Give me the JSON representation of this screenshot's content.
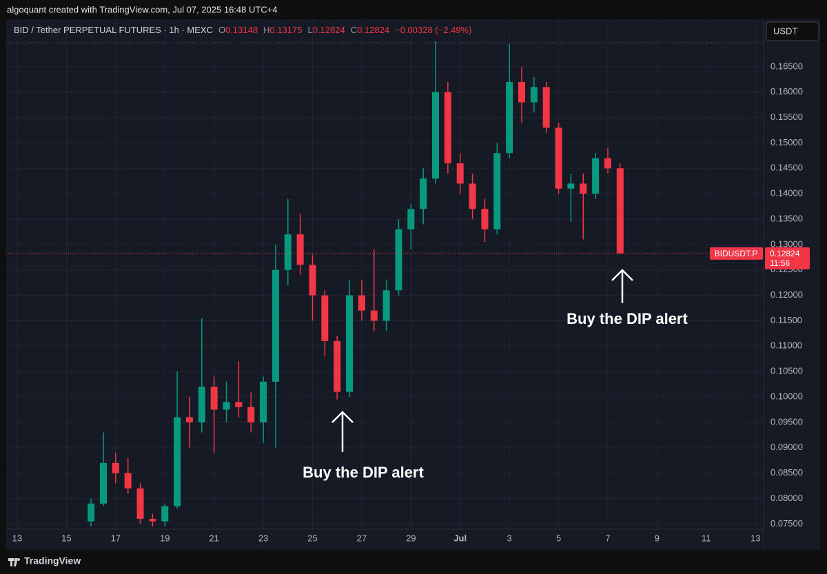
{
  "caption": "algoquant created with TradingView.com, Jul 07, 2025 16:48 UTC+4",
  "legend": {
    "symbol": "BID / Tether PERPETUAL FUTURES · 1h · MEXC",
    "open_label": "O",
    "open": 0.13148,
    "high_label": "H",
    "high": 0.13175,
    "low_label": "L",
    "low": 0.12824,
    "close_label": "C",
    "close": 0.12824,
    "change": "−0.00328 (−2.49%)"
  },
  "currency": "USDT",
  "price_tag": {
    "symbol": "BIDUSDT.P",
    "value": 0.12824,
    "countdown": "11:56"
  },
  "footer": "TradingView",
  "chart_data": {
    "type": "candlestick",
    "up_color": "#089981",
    "down_color": "#f23645",
    "grid": true,
    "x": [
      16.0,
      16.5,
      17.0,
      17.5,
      18.0,
      18.5,
      19.0,
      19.5,
      20.0,
      20.5,
      21.0,
      21.5,
      22.0,
      22.5,
      23.0,
      23.5,
      24.0,
      24.5,
      25.0,
      25.5,
      26.0,
      26.5,
      27.0,
      27.5,
      28.0,
      28.5,
      29.0,
      29.5,
      30.0,
      30.5,
      31.0,
      31.5,
      32.0,
      32.5,
      33.0,
      33.5,
      34.0,
      34.5,
      35.0,
      35.5,
      36.0,
      36.5,
      37.0,
      37.5
    ],
    "open": [
      0.0755,
      0.079,
      0.087,
      0.085,
      0.082,
      0.076,
      0.0755,
      0.0785,
      0.096,
      0.095,
      0.102,
      0.0975,
      0.099,
      0.098,
      0.095,
      0.103,
      0.125,
      0.132,
      0.126,
      0.12,
      0.111,
      0.101,
      0.12,
      0.117,
      0.115,
      0.121,
      0.133,
      0.137,
      0.143,
      0.16,
      0.146,
      0.142,
      0.137,
      0.133,
      0.148,
      0.162,
      0.158,
      0.161,
      0.153,
      0.141,
      0.142,
      0.14,
      0.147,
      0.145
    ],
    "high": [
      0.08,
      0.093,
      0.089,
      0.088,
      0.083,
      0.077,
      0.079,
      0.105,
      0.1,
      0.1155,
      0.104,
      0.103,
      0.107,
      0.101,
      0.104,
      0.13,
      0.139,
      0.136,
      0.128,
      0.121,
      0.112,
      0.123,
      0.123,
      0.129,
      0.123,
      0.135,
      0.138,
      0.145,
      0.17,
      0.162,
      0.148,
      0.144,
      0.139,
      0.15,
      0.1695,
      0.165,
      0.163,
      0.162,
      0.154,
      0.144,
      0.144,
      0.148,
      0.149,
      0.146
    ],
    "low": [
      0.0745,
      0.0785,
      0.083,
      0.081,
      0.075,
      0.0745,
      0.0745,
      0.078,
      0.09,
      0.093,
      0.089,
      0.095,
      0.096,
      0.093,
      0.091,
      0.09,
      0.122,
      0.124,
      0.115,
      0.108,
      0.0995,
      0.1,
      0.115,
      0.113,
      0.113,
      0.12,
      0.129,
      0.134,
      0.142,
      0.144,
      0.14,
      0.135,
      0.1305,
      0.132,
      0.147,
      0.154,
      0.156,
      0.152,
      0.14,
      0.1345,
      0.131,
      0.139,
      0.144,
      0.12824
    ],
    "close": [
      0.079,
      0.087,
      0.085,
      0.082,
      0.076,
      0.0755,
      0.0785,
      0.096,
      0.095,
      0.102,
      0.0975,
      0.099,
      0.098,
      0.095,
      0.103,
      0.125,
      0.132,
      0.126,
      0.12,
      0.111,
      0.101,
      0.12,
      0.117,
      0.115,
      0.121,
      0.133,
      0.137,
      0.143,
      0.16,
      0.146,
      0.142,
      0.137,
      0.133,
      0.148,
      0.162,
      0.158,
      0.161,
      0.153,
      0.141,
      0.142,
      0.14,
      0.147,
      0.145,
      0.12824
    ],
    "xlim": [
      12.58,
      43.33
    ],
    "xticks": [
      13,
      15,
      17,
      19,
      21,
      23,
      25,
      27,
      29,
      {
        "value": 31,
        "label": "Jul"
      },
      {
        "value": 33,
        "label": "3"
      },
      {
        "value": 35,
        "label": "5"
      },
      {
        "value": 37,
        "label": "7"
      },
      {
        "value": 39,
        "label": "9"
      },
      {
        "value": 41,
        "label": "11"
      },
      {
        "value": 43,
        "label": "13"
      }
    ],
    "ylim": [
      0.0745,
      0.17
    ],
    "yticks": [
      {
        "value": 0.075,
        "label": "0.07500"
      },
      {
        "value": 0.08,
        "label": "0.08000"
      },
      {
        "value": 0.085,
        "label": "0.08500"
      },
      {
        "value": 0.09,
        "label": "0.09000"
      },
      {
        "value": 0.095,
        "label": "0.09500"
      },
      {
        "value": 0.1,
        "label": "0.10000"
      },
      {
        "value": 0.105,
        "label": "0.10500"
      },
      {
        "value": 0.11,
        "label": "0.11000"
      },
      {
        "value": 0.115,
        "label": "0.11500"
      },
      {
        "value": 0.12,
        "label": "0.12000"
      },
      {
        "value": 0.125,
        "label": "0.12500"
      },
      {
        "value": 0.13,
        "label": "0.13000"
      },
      {
        "value": 0.135,
        "label": "0.13500"
      },
      {
        "value": 0.14,
        "label": "0.14000"
      },
      {
        "value": 0.145,
        "label": "0.14500"
      },
      {
        "value": 0.15,
        "label": "0.15000"
      },
      {
        "value": 0.155,
        "label": "0.15500"
      },
      {
        "value": 0.16,
        "label": "0.16000"
      },
      {
        "value": 0.165,
        "label": "0.16500"
      }
    ],
    "annotations": [
      "Buy the DIP alert",
      "Buy the DIP alert"
    ]
  }
}
